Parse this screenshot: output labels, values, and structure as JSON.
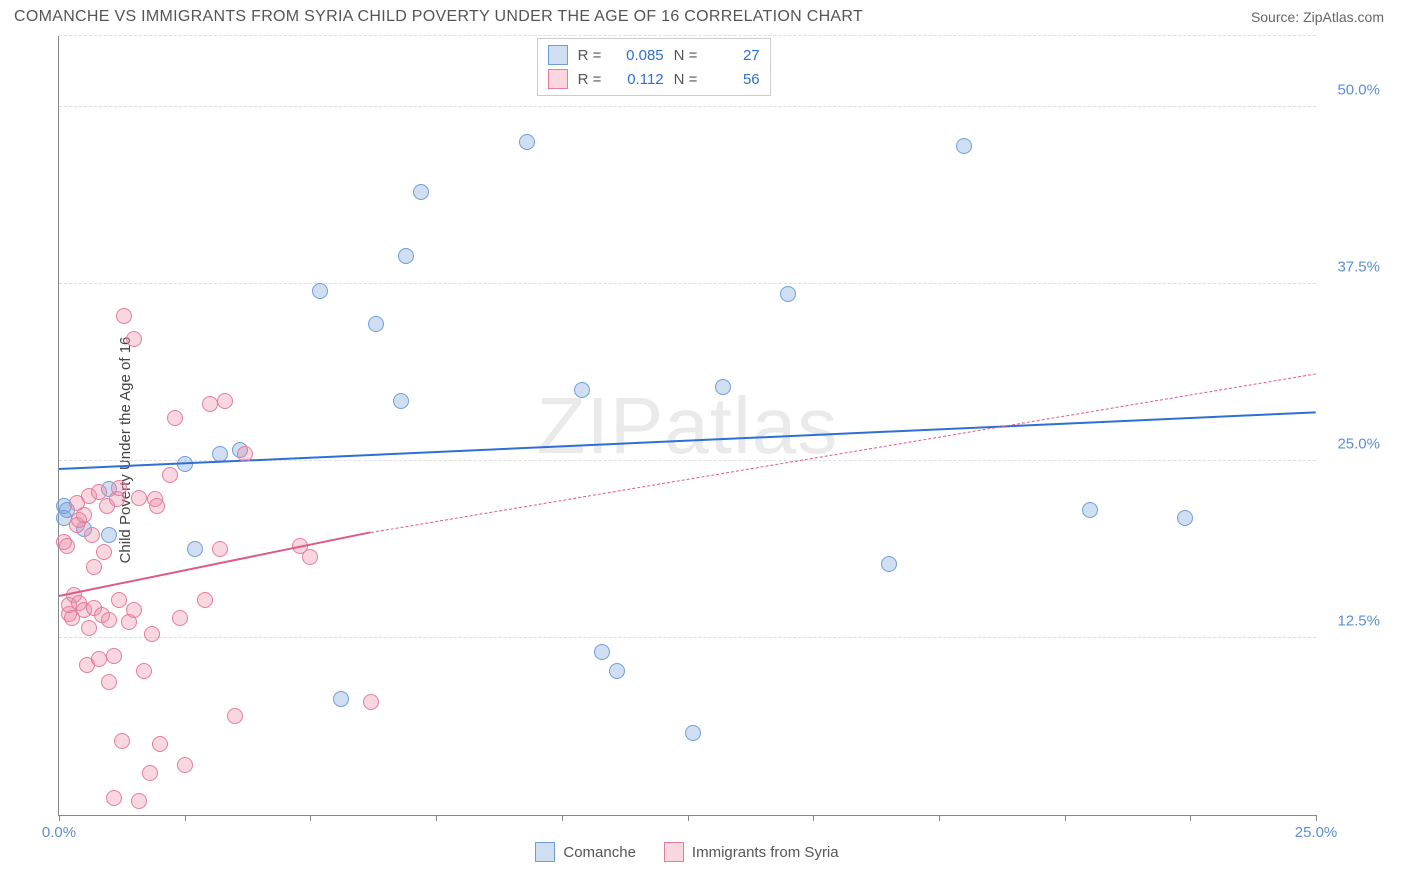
{
  "header": {
    "title": "COMANCHE VS IMMIGRANTS FROM SYRIA CHILD POVERTY UNDER THE AGE OF 16 CORRELATION CHART",
    "source": "Source: ZipAtlas.com"
  },
  "chart": {
    "type": "scatter",
    "ylabel": "Child Poverty Under the Age of 16",
    "watermark": "ZIPatlas",
    "background_color": "#ffffff",
    "grid_color": "#dddddd",
    "axis_color": "#888888",
    "tick_color": "#5a8fd6",
    "title_fontsize": 16,
    "label_fontsize": 15,
    "xlim": [
      0,
      25
    ],
    "ylim": [
      0,
      55
    ],
    "y_ticks": [
      {
        "v": 12.5,
        "label": "12.5%"
      },
      {
        "v": 25.0,
        "label": "25.0%"
      },
      {
        "v": 37.5,
        "label": "37.5%"
      },
      {
        "v": 50.0,
        "label": "50.0%"
      }
    ],
    "x_ticks_minor": [
      0,
      2.5,
      5.0,
      7.5,
      10.0,
      12.5,
      15.0,
      17.5,
      20.0,
      22.5,
      25.0
    ],
    "x_tick_labels": [
      {
        "v": 0.0,
        "label": "0.0%"
      },
      {
        "v": 25.0,
        "label": "25.0%"
      }
    ],
    "series": [
      {
        "key": "comanche",
        "name": "Comanche",
        "fill": "rgba(120,160,215,0.35)",
        "stroke": "#6d9edb",
        "marker_size": 16,
        "trend": {
          "color": "#2e6fd6",
          "width": 2,
          "x0": 0,
          "y0": 24.5,
          "x1": 25,
          "y1": 28.5,
          "solid_until_x": 25,
          "solid": true
        },
        "R": "0.085",
        "N": "27",
        "points": [
          [
            0.1,
            21.8
          ],
          [
            0.1,
            21.0
          ],
          [
            0.15,
            21.5
          ],
          [
            0.5,
            20.2
          ],
          [
            1.0,
            23.0
          ],
          [
            1.0,
            19.8
          ],
          [
            2.5,
            24.8
          ],
          [
            2.7,
            18.8
          ],
          [
            3.2,
            25.5
          ],
          [
            3.6,
            25.8
          ],
          [
            5.2,
            37.0
          ],
          [
            5.6,
            8.2
          ],
          [
            6.3,
            34.7
          ],
          [
            6.8,
            29.2
          ],
          [
            6.9,
            39.5
          ],
          [
            7.2,
            44.0
          ],
          [
            9.3,
            47.5
          ],
          [
            10.4,
            30.0
          ],
          [
            10.8,
            11.5
          ],
          [
            11.1,
            10.2
          ],
          [
            12.6,
            5.8
          ],
          [
            13.2,
            30.2
          ],
          [
            14.5,
            36.8
          ],
          [
            16.5,
            17.7
          ],
          [
            18.0,
            47.2
          ],
          [
            20.5,
            21.5
          ],
          [
            22.4,
            21.0
          ]
        ]
      },
      {
        "key": "syria",
        "name": "Immigrants from Syria",
        "fill": "rgba(235,140,165,0.35)",
        "stroke": "#e77b9a",
        "marker_size": 16,
        "trend": {
          "color": "#e05a82",
          "width": 2,
          "x0": 0,
          "y0": 15.5,
          "x1_solid": 6.2,
          "y1_solid": 20.0,
          "x1": 25,
          "y1": 31.2,
          "solid": false
        },
        "R": "0.112",
        "N": "56",
        "points": [
          [
            0.1,
            19.3
          ],
          [
            0.15,
            19.0
          ],
          [
            0.2,
            14.2
          ],
          [
            0.2,
            14.8
          ],
          [
            0.25,
            13.9
          ],
          [
            0.3,
            15.5
          ],
          [
            0.35,
            20.5
          ],
          [
            0.35,
            22.0
          ],
          [
            0.4,
            20.8
          ],
          [
            0.4,
            15.0
          ],
          [
            0.5,
            14.5
          ],
          [
            0.5,
            21.2
          ],
          [
            0.55,
            10.6
          ],
          [
            0.6,
            22.5
          ],
          [
            0.6,
            13.2
          ],
          [
            0.65,
            19.8
          ],
          [
            0.7,
            17.5
          ],
          [
            0.7,
            14.6
          ],
          [
            0.8,
            22.8
          ],
          [
            0.8,
            11.0
          ],
          [
            0.85,
            14.1
          ],
          [
            0.9,
            18.6
          ],
          [
            0.95,
            21.8
          ],
          [
            1.0,
            9.4
          ],
          [
            1.0,
            13.8
          ],
          [
            1.1,
            11.2
          ],
          [
            1.1,
            1.2
          ],
          [
            1.15,
            22.3
          ],
          [
            1.2,
            23.1
          ],
          [
            1.2,
            15.2
          ],
          [
            1.25,
            5.2
          ],
          [
            1.3,
            35.2
          ],
          [
            1.4,
            13.6
          ],
          [
            1.5,
            14.5
          ],
          [
            1.5,
            33.6
          ],
          [
            1.6,
            1.0
          ],
          [
            1.6,
            22.4
          ],
          [
            1.7,
            10.2
          ],
          [
            1.8,
            3.0
          ],
          [
            1.85,
            12.8
          ],
          [
            1.9,
            22.3
          ],
          [
            1.95,
            21.8
          ],
          [
            2.0,
            5.0
          ],
          [
            2.2,
            24.0
          ],
          [
            2.3,
            28.0
          ],
          [
            2.4,
            13.9
          ],
          [
            2.5,
            3.5
          ],
          [
            2.9,
            15.2
          ],
          [
            3.0,
            29.0
          ],
          [
            3.2,
            18.8
          ],
          [
            3.3,
            29.2
          ],
          [
            3.5,
            7.0
          ],
          [
            3.7,
            25.5
          ],
          [
            4.8,
            19.0
          ],
          [
            5.0,
            18.2
          ],
          [
            6.2,
            8.0
          ]
        ]
      }
    ],
    "stats_box": {
      "rows": [
        {
          "swatch_fill": "rgba(120,160,215,0.35)",
          "swatch_stroke": "#6d9edb",
          "R_label": "R =",
          "R": "0.085",
          "N_label": "N =",
          "N": "27"
        },
        {
          "swatch_fill": "rgba(235,140,165,0.35)",
          "swatch_stroke": "#e77b9a",
          "R_label": "R =",
          "R": "0.112",
          "N_label": "N =",
          "N": "56"
        }
      ]
    },
    "legend": [
      {
        "swatch_fill": "rgba(120,160,215,0.35)",
        "swatch_stroke": "#6d9edb",
        "label": "Comanche"
      },
      {
        "swatch_fill": "rgba(235,140,165,0.35)",
        "swatch_stroke": "#e77b9a",
        "label": "Immigrants from Syria"
      }
    ]
  }
}
